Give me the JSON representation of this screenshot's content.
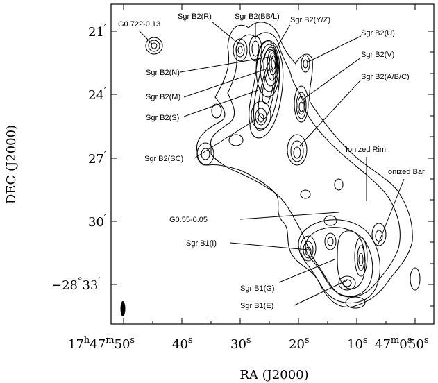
{
  "figure": {
    "xlabel": "RA (J2000)",
    "ylabel": "DEC (J2000)"
  },
  "x_ticks": [
    {
      "id": "ra-50-47",
      "h": "17",
      "m": "47",
      "s": "50"
    },
    {
      "id": "ra-40",
      "s": "40"
    },
    {
      "id": "ra-30",
      "s": "30"
    },
    {
      "id": "ra-20",
      "s": "20"
    },
    {
      "id": "ra-10",
      "s": "10"
    },
    {
      "id": "ra-0",
      "m": "47",
      "s": "0"
    },
    {
      "id": "ra-50-46",
      "s": "50"
    }
  ],
  "y_ticks": [
    {
      "id": "dec-21",
      "text": "21",
      "unit": "′"
    },
    {
      "id": "dec-24",
      "text": "24",
      "unit": "′"
    },
    {
      "id": "dec-27",
      "text": "27",
      "unit": "′"
    },
    {
      "id": "dec-30",
      "text": "30",
      "unit": "′"
    },
    {
      "id": "dec-33",
      "pre": "−28",
      "deg": "°",
      "text": "33",
      "unit": "′"
    }
  ],
  "sources": [
    {
      "id": "g0722",
      "label": "G0.722-0.13"
    },
    {
      "id": "b2r",
      "label": "Sgr B2(R)"
    },
    {
      "id": "b2bbl",
      "label": "Sgr B2(BB/L)"
    },
    {
      "id": "b2yz",
      "label": "Sgr B2(Y/Z)"
    },
    {
      "id": "b2u",
      "label": "Sgr B2(U)"
    },
    {
      "id": "b2v",
      "label": "Sgr B2(V)"
    },
    {
      "id": "b2abc",
      "label": "Sgr B2(A/B/C)"
    },
    {
      "id": "b2n",
      "label": "Sgr B2(N)"
    },
    {
      "id": "b2m",
      "label": "Sgr B2(M)"
    },
    {
      "id": "b2s",
      "label": "Sgr B2(S)"
    },
    {
      "id": "b2sc",
      "label": "Sgr B2(SC)"
    },
    {
      "id": "rim",
      "label": "Ionized Rim"
    },
    {
      "id": "bar",
      "label": "Ionized Bar"
    },
    {
      "id": "g055",
      "label": "G0.55-0.05"
    },
    {
      "id": "b1i",
      "label": "Sgr B1(I)"
    },
    {
      "id": "b1g",
      "label": "Sgr B1(G)"
    },
    {
      "id": "b1e",
      "label": "Sgr B1(E)"
    }
  ]
}
